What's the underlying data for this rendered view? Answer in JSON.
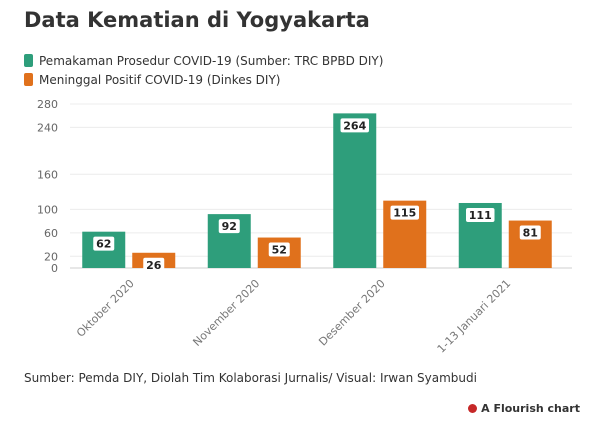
{
  "title": "Data Kematian di Yogyakarta",
  "source": "Sumber: Pemda DIY, Diolah Tim Kolaborasi Jurnalis/ Visual: Irwan Syambudi",
  "credit": "A Flourish chart",
  "credit_icon": "flourish-logo-icon",
  "chart_data": {
    "type": "bar",
    "title": "Data Kematian di Yogyakarta",
    "xlabel": "",
    "ylabel": "",
    "categories": [
      "Oktober 2020",
      "November 2020",
      "Desember 2020",
      "1-13 Januari 2021"
    ],
    "series": [
      {
        "name": "Pemakaman Prosedur COVID-19 (Sumber: TRC BPBD DIY)",
        "color": "#2e9e7b",
        "values": [
          62,
          92,
          264,
          111
        ]
      },
      {
        "name": "Meninggal Positif COVID-19 (Dinkes DIY)",
        "color": "#e0711c",
        "values": [
          26,
          52,
          115,
          81
        ]
      }
    ],
    "yticks": [
      0,
      20,
      60,
      100,
      160,
      240,
      280
    ],
    "ylim": [
      0,
      280
    ],
    "grid": true,
    "legend_position": "top-left",
    "data_labels": true
  }
}
